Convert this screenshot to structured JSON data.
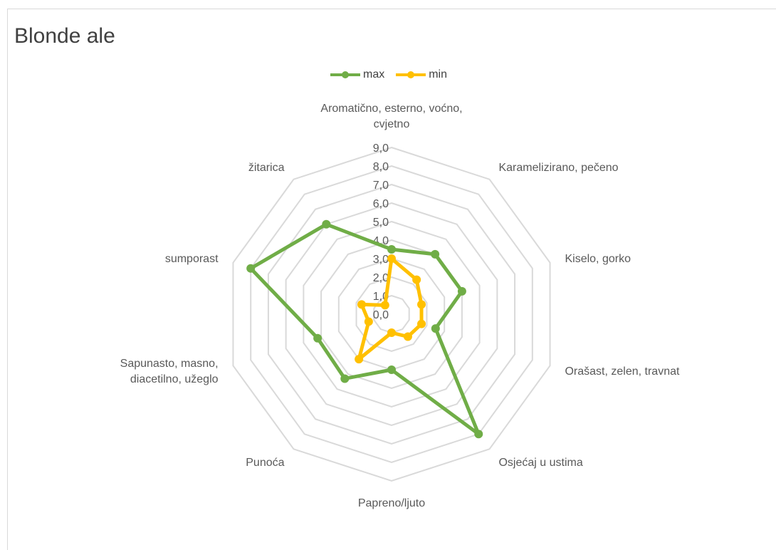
{
  "chart_data": {
    "type": "radar",
    "title": "Blonde ale",
    "categories": [
      "Aromatično, esterno, voćno, cvjetno",
      "Karamelizirano, pečeno",
      "Kiselo, gorko",
      "Orašast, zelen, travnat",
      "Osjećaj u ustima",
      "Papreno/ljuto",
      "Punoća",
      "Sapunasto, masno, diacetilno, užeglo",
      "sumporast",
      "žitarica"
    ],
    "category_lines": [
      [
        "Aromatično, esterno, voćno,",
        "cvjetno"
      ],
      [
        "Karamelizirano, pečeno"
      ],
      [
        "Kiselo, gorko"
      ],
      [
        "Orašast, zelen, travnat"
      ],
      [
        "Osjećaj u ustima"
      ],
      [
        "Papreno/ljuto"
      ],
      [
        "Punoća"
      ],
      [
        "Sapunasto, masno,",
        "diacetilno, užeglo"
      ],
      [
        "sumporast"
      ],
      [
        "žitarica"
      ]
    ],
    "series": [
      {
        "name": "max",
        "color": "#70ad47",
        "values": [
          3.5,
          4.0,
          4.0,
          2.5,
          8.0,
          3.0,
          4.3,
          4.2,
          8.0,
          6.0
        ]
      },
      {
        "name": "min",
        "color": "#ffc000",
        "values": [
          3.0,
          2.3,
          1.7,
          1.7,
          1.5,
          1.0,
          3.0,
          1.3,
          1.7,
          0.6
        ]
      }
    ],
    "r_axis": {
      "min": 0,
      "max": 9,
      "step": 1,
      "tick_labels": [
        "0,0",
        "1,0",
        "2,0",
        "3,0",
        "4,0",
        "5,0",
        "6,0",
        "7,0",
        "8,0",
        "9,0"
      ]
    },
    "grid": true,
    "legend_position": "top"
  }
}
